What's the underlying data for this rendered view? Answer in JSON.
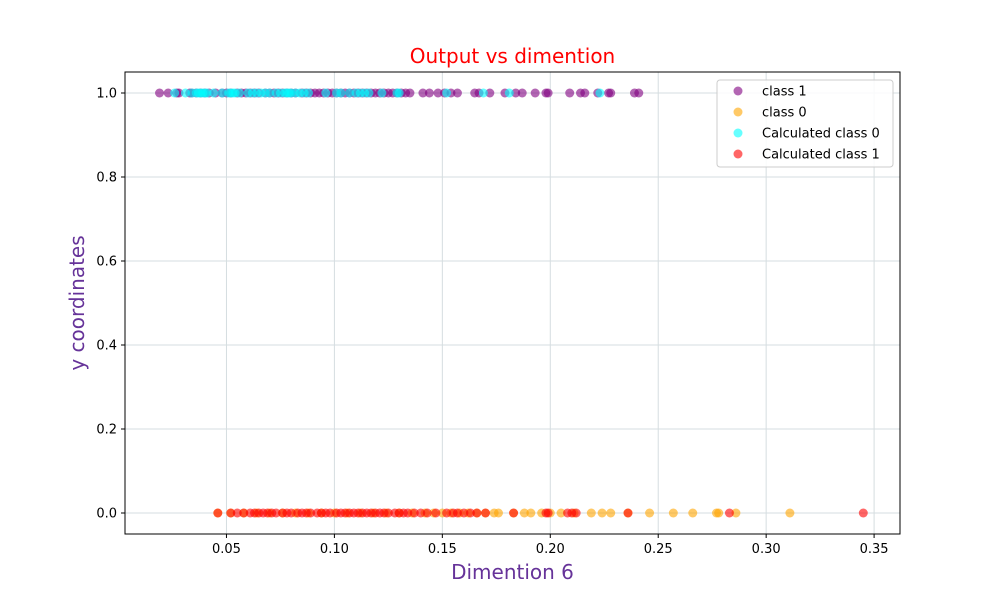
{
  "chart_data": {
    "type": "scatter",
    "title": "Output vs dimention",
    "xlabel": "Dimention 6",
    "ylabel": "y coordinates",
    "xlim": [
      0.003,
      0.362
    ],
    "ylim": [
      -0.05,
      1.05
    ],
    "xticks": [
      0.05,
      0.1,
      0.15,
      0.2,
      0.25,
      0.3,
      0.35
    ],
    "yticks": [
      0.0,
      0.2,
      0.4,
      0.6,
      0.8,
      1.0
    ],
    "grid": true,
    "legend_position": "top-right",
    "colors": {
      "title": "#ff0000",
      "axis_label": "#663399"
    },
    "series": [
      {
        "name": "class 1",
        "color": "#800080",
        "x": [
          0.019,
          0.023,
          0.027,
          0.028,
          0.033,
          0.034,
          0.036,
          0.038,
          0.04,
          0.042,
          0.045,
          0.048,
          0.05,
          0.052,
          0.055,
          0.057,
          0.059,
          0.061,
          0.063,
          0.065,
          0.068,
          0.07,
          0.072,
          0.074,
          0.076,
          0.078,
          0.08,
          0.082,
          0.085,
          0.087,
          0.089,
          0.091,
          0.093,
          0.095,
          0.097,
          0.099,
          0.101,
          0.103,
          0.105,
          0.107,
          0.109,
          0.111,
          0.113,
          0.115,
          0.117,
          0.119,
          0.121,
          0.123,
          0.125,
          0.127,
          0.129,
          0.131,
          0.133,
          0.135,
          0.141,
          0.144,
          0.148,
          0.151,
          0.154,
          0.157,
          0.165,
          0.167,
          0.172,
          0.179,
          0.184,
          0.187,
          0.193,
          0.198,
          0.199,
          0.209,
          0.214,
          0.216,
          0.222,
          0.227,
          0.228,
          0.239,
          0.241
        ],
        "y": [
          1.0,
          1.0,
          1.0,
          1.0,
          1.0,
          1.0,
          1.0,
          1.0,
          1.0,
          1.0,
          1.0,
          1.0,
          1.0,
          1.0,
          1.0,
          1.0,
          1.0,
          1.0,
          1.0,
          1.0,
          1.0,
          1.0,
          1.0,
          1.0,
          1.0,
          1.0,
          1.0,
          1.0,
          1.0,
          1.0,
          1.0,
          1.0,
          1.0,
          1.0,
          1.0,
          1.0,
          1.0,
          1.0,
          1.0,
          1.0,
          1.0,
          1.0,
          1.0,
          1.0,
          1.0,
          1.0,
          1.0,
          1.0,
          1.0,
          1.0,
          1.0,
          1.0,
          1.0,
          1.0,
          1.0,
          1.0,
          1.0,
          1.0,
          1.0,
          1.0,
          1.0,
          1.0,
          1.0,
          1.0,
          1.0,
          1.0,
          1.0,
          1.0,
          1.0,
          1.0,
          1.0,
          1.0,
          1.0,
          1.0,
          1.0,
          1.0,
          1.0
        ]
      },
      {
        "name": "class 0",
        "color": "#ffa500",
        "x": [
          0.046,
          0.052,
          0.058,
          0.064,
          0.07,
          0.076,
          0.082,
          0.088,
          0.094,
          0.1,
          0.106,
          0.112,
          0.118,
          0.124,
          0.13,
          0.136,
          0.142,
          0.146,
          0.15,
          0.154,
          0.158,
          0.162,
          0.166,
          0.17,
          0.174,
          0.176,
          0.183,
          0.188,
          0.191,
          0.196,
          0.2,
          0.205,
          0.211,
          0.219,
          0.224,
          0.228,
          0.236,
          0.246,
          0.257,
          0.266,
          0.277,
          0.278,
          0.286,
          0.311
        ],
        "y": [
          0.0,
          0.0,
          0.0,
          0.0,
          0.0,
          0.0,
          0.0,
          0.0,
          0.0,
          0.0,
          0.0,
          0.0,
          0.0,
          0.0,
          0.0,
          0.0,
          0.0,
          0.0,
          0.0,
          0.0,
          0.0,
          0.0,
          0.0,
          0.0,
          0.0,
          0.0,
          0.0,
          0.0,
          0.0,
          0.0,
          0.0,
          0.0,
          0.0,
          0.0,
          0.0,
          0.0,
          0.0,
          0.0,
          0.0,
          0.0,
          0.0,
          0.0,
          0.0,
          0.0
        ]
      },
      {
        "name": "Calculated class 0",
        "color": "#00ffff",
        "x": [
          0.026,
          0.031,
          0.034,
          0.036,
          0.037,
          0.038,
          0.039,
          0.04,
          0.041,
          0.044,
          0.048,
          0.051,
          0.052,
          0.053,
          0.054,
          0.056,
          0.06,
          0.062,
          0.064,
          0.066,
          0.068,
          0.07,
          0.073,
          0.075,
          0.077,
          0.078,
          0.079,
          0.08,
          0.082,
          0.084,
          0.086,
          0.088,
          0.096,
          0.101,
          0.103,
          0.107,
          0.11,
          0.112,
          0.114,
          0.116,
          0.122,
          0.129,
          0.13,
          0.152,
          0.169,
          0.181,
          0.223
        ],
        "y": [
          1.0,
          1.0,
          1.0,
          1.0,
          1.0,
          1.0,
          1.0,
          1.0,
          1.0,
          1.0,
          1.0,
          1.0,
          1.0,
          1.0,
          1.0,
          1.0,
          1.0,
          1.0,
          1.0,
          1.0,
          1.0,
          1.0,
          1.0,
          1.0,
          1.0,
          1.0,
          1.0,
          1.0,
          1.0,
          1.0,
          1.0,
          1.0,
          1.0,
          1.0,
          1.0,
          1.0,
          1.0,
          1.0,
          1.0,
          1.0,
          1.0,
          1.0,
          1.0,
          1.0,
          1.0,
          1.0,
          1.0
        ]
      },
      {
        "name": "Calculated class 1",
        "color": "#ff0000",
        "x": [
          0.046,
          0.052,
          0.055,
          0.058,
          0.061,
          0.063,
          0.065,
          0.067,
          0.069,
          0.071,
          0.073,
          0.076,
          0.078,
          0.08,
          0.083,
          0.085,
          0.087,
          0.089,
          0.092,
          0.094,
          0.096,
          0.098,
          0.101,
          0.103,
          0.105,
          0.107,
          0.109,
          0.111,
          0.113,
          0.115,
          0.117,
          0.119,
          0.121,
          0.123,
          0.125,
          0.128,
          0.13,
          0.132,
          0.134,
          0.137,
          0.14,
          0.143,
          0.147,
          0.152,
          0.155,
          0.157,
          0.16,
          0.163,
          0.166,
          0.17,
          0.183,
          0.198,
          0.199,
          0.208,
          0.21,
          0.212,
          0.236,
          0.283,
          0.345
        ],
        "y": [
          0.0,
          0.0,
          0.0,
          0.0,
          0.0,
          0.0,
          0.0,
          0.0,
          0.0,
          0.0,
          0.0,
          0.0,
          0.0,
          0.0,
          0.0,
          0.0,
          0.0,
          0.0,
          0.0,
          0.0,
          0.0,
          0.0,
          0.0,
          0.0,
          0.0,
          0.0,
          0.0,
          0.0,
          0.0,
          0.0,
          0.0,
          0.0,
          0.0,
          0.0,
          0.0,
          0.0,
          0.0,
          0.0,
          0.0,
          0.0,
          0.0,
          0.0,
          0.0,
          0.0,
          0.0,
          0.0,
          0.0,
          0.0,
          0.0,
          0.0,
          0.0,
          0.0,
          0.0,
          0.0,
          0.0,
          0.0,
          0.0,
          0.0,
          0.0
        ]
      }
    ]
  }
}
